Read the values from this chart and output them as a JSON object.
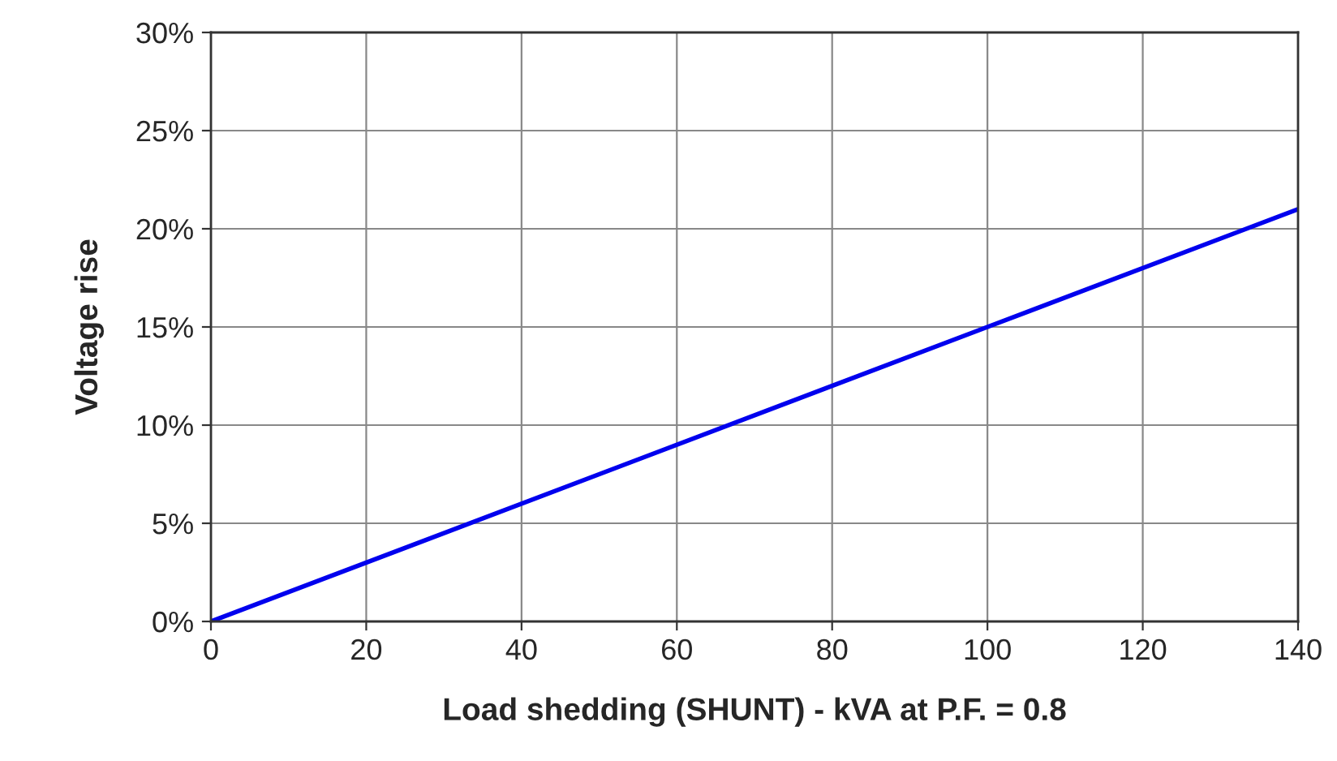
{
  "chart_data": {
    "type": "line",
    "xlabel": "Load shedding (SHUNT) - kVA at P.F. = 0.8",
    "ylabel": "Voltage rise",
    "series": [
      {
        "color": "#0000ee",
        "x": [
          0,
          100,
          140
        ],
        "values": [
          0,
          15,
          21
        ]
      }
    ],
    "xlim": [
      0,
      140
    ],
    "xticks": [
      0,
      20,
      40,
      60,
      80,
      100,
      120,
      140
    ],
    "ylim": [
      0,
      30
    ],
    "yticks": [
      {
        "value": 0,
        "label": "0%"
      },
      {
        "value": 5,
        "label": "5%"
      },
      {
        "value": 10,
        "label": "10%"
      },
      {
        "value": 15,
        "label": "15%"
      },
      {
        "value": 20,
        "label": "20%"
      },
      {
        "value": 25,
        "label": "25%"
      },
      {
        "value": 30,
        "label": "30%"
      }
    ],
    "grid": true,
    "legend": false,
    "marker": "none",
    "line_style": "solid"
  }
}
